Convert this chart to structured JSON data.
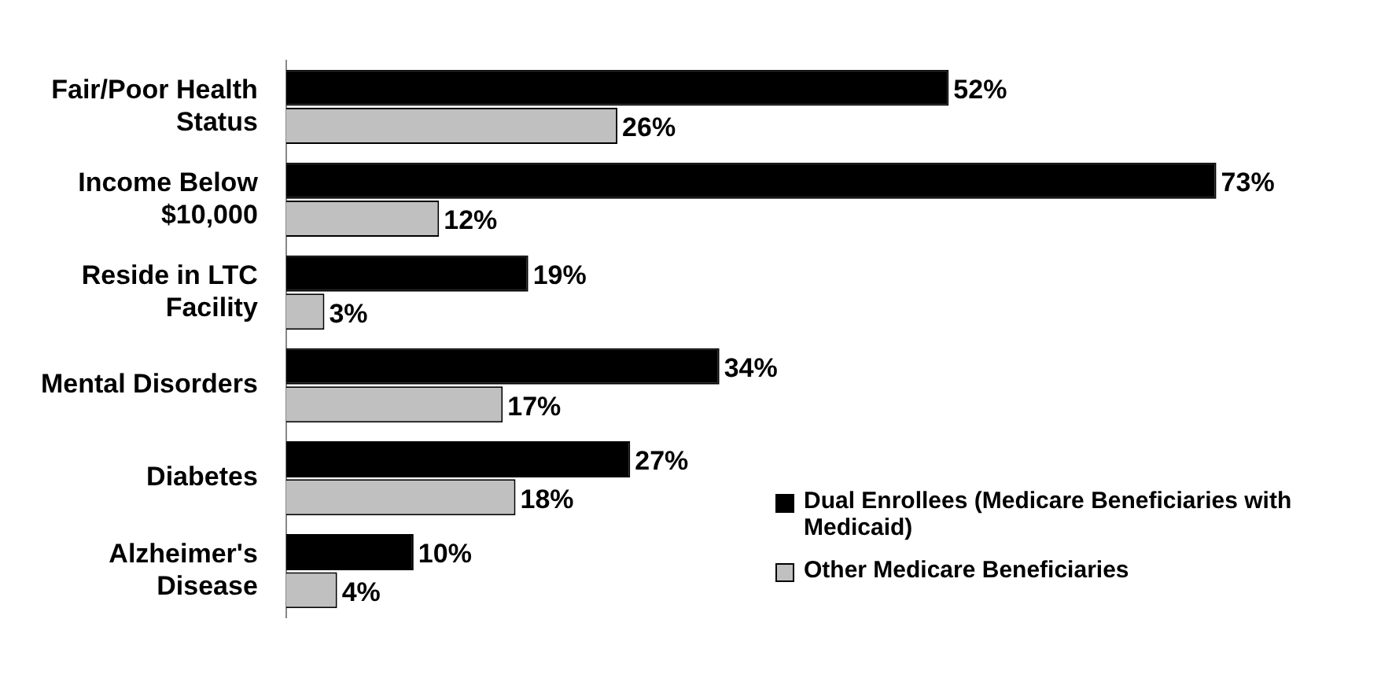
{
  "chart_data": {
    "type": "bar",
    "orientation": "horizontal",
    "categories": [
      "Fair/Poor Health Status",
      "Income Below $10,000",
      "Reside in LTC Facility",
      "Mental Disorders",
      "Diabetes",
      "Alzheimer's Disease"
    ],
    "series": [
      {
        "name": "Dual Enrollees (Medicare Beneficiaries with Medicaid)",
        "color": "#000000",
        "values": [
          52,
          73,
          19,
          34,
          27,
          10
        ],
        "value_labels": [
          "52%",
          "73%",
          "19%",
          "34%",
          "27%",
          "10%"
        ]
      },
      {
        "name": "Other Medicare Beneficiaries",
        "color": "#c0c0c0",
        "values": [
          26,
          12,
          3,
          17,
          18,
          4
        ],
        "value_labels": [
          "26%",
          "12%",
          "3%",
          "17%",
          "18%",
          "4%"
        ]
      }
    ],
    "legend": "bottom right",
    "grid": false,
    "tick_labels": "y"
  }
}
